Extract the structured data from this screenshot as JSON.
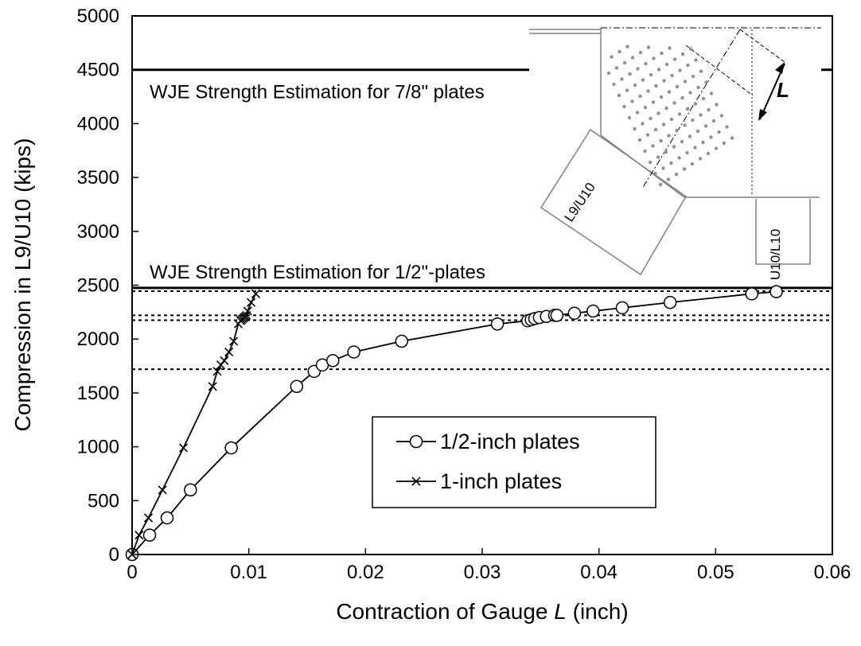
{
  "chart_data": {
    "type": "line",
    "xlabel": "Contraction of Gauge ",
    "xlabel_italic": "L",
    "xlabel_suffix": "  (inch)",
    "ylabel": "Compression in L9/U10 (kips)",
    "xlim": [
      0,
      0.06
    ],
    "ylim": [
      0,
      5000
    ],
    "x_ticks": [
      0,
      0.01,
      0.02,
      0.03,
      0.04,
      0.05,
      0.06
    ],
    "x_tick_labels": [
      "0",
      "0.01",
      "0.02",
      "0.03",
      "0.04",
      "0.05",
      "0.06"
    ],
    "y_ticks": [
      0,
      500,
      1000,
      1500,
      2000,
      2500,
      3000,
      3500,
      4000,
      4500,
      5000
    ],
    "y_tick_labels": [
      "0",
      "500",
      "1000",
      "1500",
      "2000",
      "2500",
      "3000",
      "3500",
      "4000",
      "4500",
      "5000"
    ],
    "grid": false,
    "legend_position": "lower-middle",
    "series": [
      {
        "name": "1/2-inch plates",
        "marker": "circle",
        "x": [
          0,
          0.0015,
          0.003,
          0.005,
          0.0085,
          0.0141,
          0.0156,
          0.0163,
          0.0172,
          0.019,
          0.0231,
          0.0313,
          0.0339,
          0.0342,
          0.0345,
          0.0349,
          0.0355,
          0.0362,
          0.0364,
          0.0379,
          0.0395,
          0.042,
          0.0461,
          0.0531,
          0.0552
        ],
        "y": [
          0,
          180,
          340,
          600,
          990,
          1560,
          1700,
          1760,
          1800,
          1880,
          1980,
          2140,
          2170,
          2180,
          2190,
          2200,
          2210,
          2220,
          2220,
          2240,
          2260,
          2290,
          2340,
          2420,
          2440
        ]
      },
      {
        "name": "1-inch plates",
        "marker": "x",
        "x": [
          0,
          0.0006,
          0.0014,
          0.0026,
          0.0044,
          0.0069,
          0.0073,
          0.0076,
          0.0079,
          0.0083,
          0.0087,
          0.0091,
          0.0093,
          0.0094,
          0.0095,
          0.0096,
          0.0097,
          0.0098,
          0.0099,
          0.0102,
          0.0106
        ],
        "y": [
          0,
          180,
          340,
          600,
          990,
          1560,
          1700,
          1760,
          1800,
          1880,
          1980,
          2140,
          2170,
          2180,
          2190,
          2200,
          2210,
          2220,
          2260,
          2340,
          2420
        ]
      }
    ],
    "reference_lines": [
      {
        "y": 4500,
        "style": "solid",
        "label": "WJE Strength Estimation for 7/8\" plates"
      },
      {
        "y": 2475,
        "style": "solid",
        "label": "WJE Strength Estimation for 1/2\"-plates"
      },
      {
        "y": 2445,
        "style": "dotted"
      },
      {
        "y": 2220,
        "style": "dotted"
      },
      {
        "y": 2175,
        "style": "dotted"
      },
      {
        "y": 1720,
        "style": "dotted"
      }
    ],
    "inset": {
      "labels": {
        "member": "L9/U10",
        "vertical": "U10/L10",
        "gauge": "L"
      }
    }
  }
}
